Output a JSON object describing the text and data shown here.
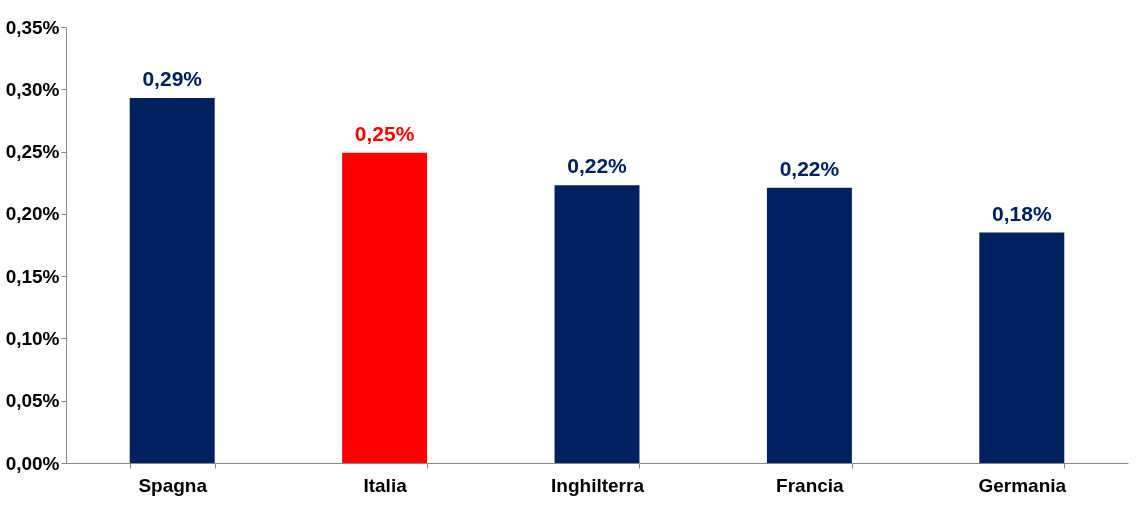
{
  "chart_data": {
    "type": "bar",
    "categories": [
      "Spagna",
      "Italia",
      "Inghilterra",
      "Francia",
      "Germania"
    ],
    "values": [
      0.293,
      0.249,
      0.223,
      0.221,
      0.185
    ],
    "colors": [
      "#002060",
      "#ff0000",
      "#002060",
      "#002060",
      "#002060"
    ],
    "value_labels": [
      "0,29%",
      "0,25%",
      "0,22%",
      "0,22%",
      "0,18%"
    ],
    "ylim": [
      0,
      0.35
    ],
    "yticks": [
      {
        "value": 0,
        "label": "0,00%"
      },
      {
        "value": 0.05,
        "label": "0,05%"
      },
      {
        "value": 0.1,
        "label": "0,10%"
      },
      {
        "value": 0.15,
        "label": "0,15%"
      },
      {
        "value": 0.2,
        "label": "0,20%"
      },
      {
        "value": 0.25,
        "label": "0,25%"
      },
      {
        "value": 0.3,
        "label": "0,30%"
      },
      {
        "value": 0.35,
        "label": "0,35%"
      }
    ],
    "grid": false
  }
}
